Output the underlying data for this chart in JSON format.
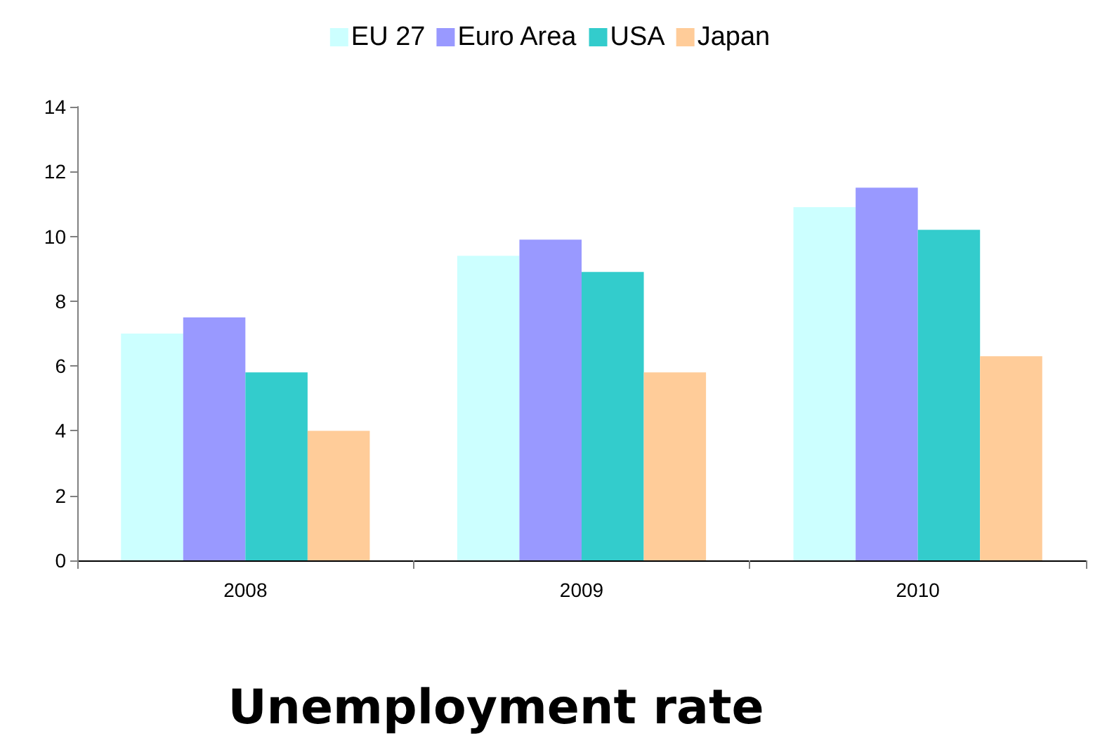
{
  "chart_data": {
    "type": "bar",
    "title": "Unemployment rate",
    "categories": [
      "2008",
      "2009",
      "2010"
    ],
    "series": [
      {
        "name": "EU 27",
        "color": "#ccffff",
        "values": [
          7.0,
          9.4,
          10.9
        ]
      },
      {
        "name": "Euro Area",
        "color": "#9999ff",
        "values": [
          7.5,
          9.9,
          11.5
        ]
      },
      {
        "name": "USA",
        "color": "#33cccc",
        "values": [
          5.8,
          8.9,
          10.2
        ]
      },
      {
        "name": "Japan",
        "color": "#ffcc99",
        "values": [
          4.0,
          5.8,
          6.3
        ]
      }
    ],
    "ylim": [
      0,
      14
    ],
    "yticks": [
      0,
      2,
      4,
      6,
      8,
      10,
      12,
      14
    ],
    "grid": false,
    "legend": "top"
  }
}
